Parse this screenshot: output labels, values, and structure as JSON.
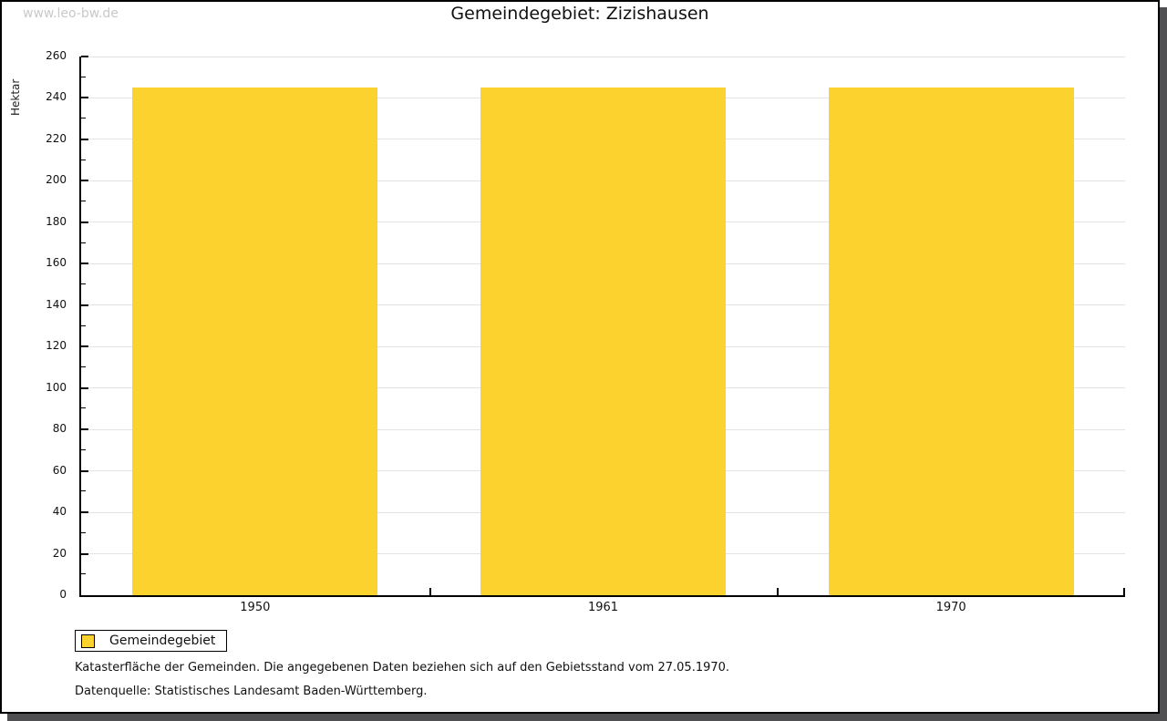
{
  "watermark": "www.leo-bw.de",
  "title": "Gemeindegebiet: Zizishausen",
  "legend": {
    "label": "Gemeindegebiet",
    "swatch_color": "#fcd32e"
  },
  "footer": {
    "line1": "Katasterfläche der Gemeinden. Die angegebenen Daten beziehen sich auf den Gebietsstand vom 27.05.1970.",
    "line2": "Datenquelle: Statistisches Landesamt Baden-Württemberg."
  },
  "chart_data": {
    "type": "bar",
    "title": "Gemeindegebiet: Zizishausen",
    "categories": [
      "1950",
      "1961",
      "1970"
    ],
    "series": [
      {
        "name": "Gemeindegebiet",
        "values": [
          245,
          245,
          245
        ]
      }
    ],
    "xlabel": "",
    "ylabel": "Hektar",
    "ylim": [
      0,
      260
    ],
    "yticks": [
      0,
      20,
      40,
      60,
      80,
      100,
      120,
      140,
      160,
      180,
      200,
      220,
      240,
      260
    ],
    "minor_tick_step": 10,
    "grid": true,
    "legend_position": "bottom-left",
    "bar_color": "#fcd32e",
    "gridline_color": "#e3e3e3"
  }
}
